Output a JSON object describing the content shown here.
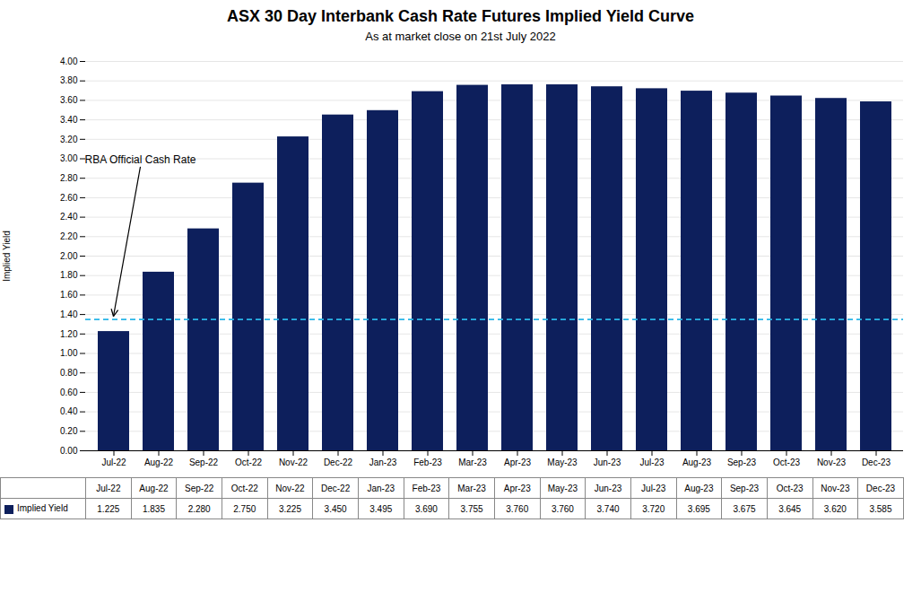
{
  "chart_data": {
    "type": "bar",
    "title": "ASX 30 Day Interbank Cash Rate Futures Implied Yield Curve",
    "subtitle": "As at market close on 21st July 2022",
    "ylabel": "Implied Yield",
    "categories": [
      "Jul-22",
      "Aug-22",
      "Sep-22",
      "Oct-22",
      "Nov-22",
      "Dec-22",
      "Jan-23",
      "Feb-23",
      "Mar-23",
      "Apr-23",
      "May-23",
      "Jun-23",
      "Jul-23",
      "Aug-23",
      "Sep-23",
      "Oct-23",
      "Nov-23",
      "Dec-23"
    ],
    "series": [
      {
        "name": "Implied Yield",
        "color": "#0d1f5c",
        "values": [
          1.225,
          1.835,
          2.28,
          2.75,
          3.225,
          3.45,
          3.495,
          3.69,
          3.755,
          3.76,
          3.76,
          3.74,
          3.72,
          3.695,
          3.675,
          3.645,
          3.62,
          3.585
        ],
        "value_labels": [
          "1.225",
          "1.835",
          "2.280",
          "2.750",
          "3.225",
          "3.450",
          "3.495",
          "3.690",
          "3.755",
          "3.760",
          "3.760",
          "3.740",
          "3.720",
          "3.695",
          "3.675",
          "3.645",
          "3.620",
          "3.585"
        ]
      }
    ],
    "annotations": [
      {
        "text": "RBA Official Cash Rate",
        "y": 1.35,
        "color": "#29b5e8",
        "line_style": "dashed"
      }
    ],
    "ylim": [
      0.0,
      4.0
    ],
    "yticks": [
      {
        "value": 0.0,
        "label": "0.00"
      },
      {
        "value": 0.2,
        "label": "0.20"
      },
      {
        "value": 0.4,
        "label": "0.40"
      },
      {
        "value": 0.6,
        "label": "0.60"
      },
      {
        "value": 0.8,
        "label": "0.80"
      },
      {
        "value": 1.0,
        "label": "1.00"
      },
      {
        "value": 1.2,
        "label": "1.20"
      },
      {
        "value": 1.4,
        "label": "1.40"
      },
      {
        "value": 1.6,
        "label": "1.60"
      },
      {
        "value": 1.8,
        "label": "1.80"
      },
      {
        "value": 2.0,
        "label": "2.00"
      },
      {
        "value": 2.2,
        "label": "2.20"
      },
      {
        "value": 2.4,
        "label": "2.40"
      },
      {
        "value": 2.6,
        "label": "2.60"
      },
      {
        "value": 2.8,
        "label": "2.80"
      },
      {
        "value": 3.0,
        "label": "3.00"
      },
      {
        "value": 3.2,
        "label": "3.20"
      },
      {
        "value": 3.4,
        "label": "3.40"
      },
      {
        "value": 3.6,
        "label": "3.60"
      },
      {
        "value": 3.8,
        "label": "3.80"
      },
      {
        "value": 4.0,
        "label": "4.00"
      }
    ],
    "grid": true,
    "data_labels": true,
    "legend": "bottom"
  }
}
